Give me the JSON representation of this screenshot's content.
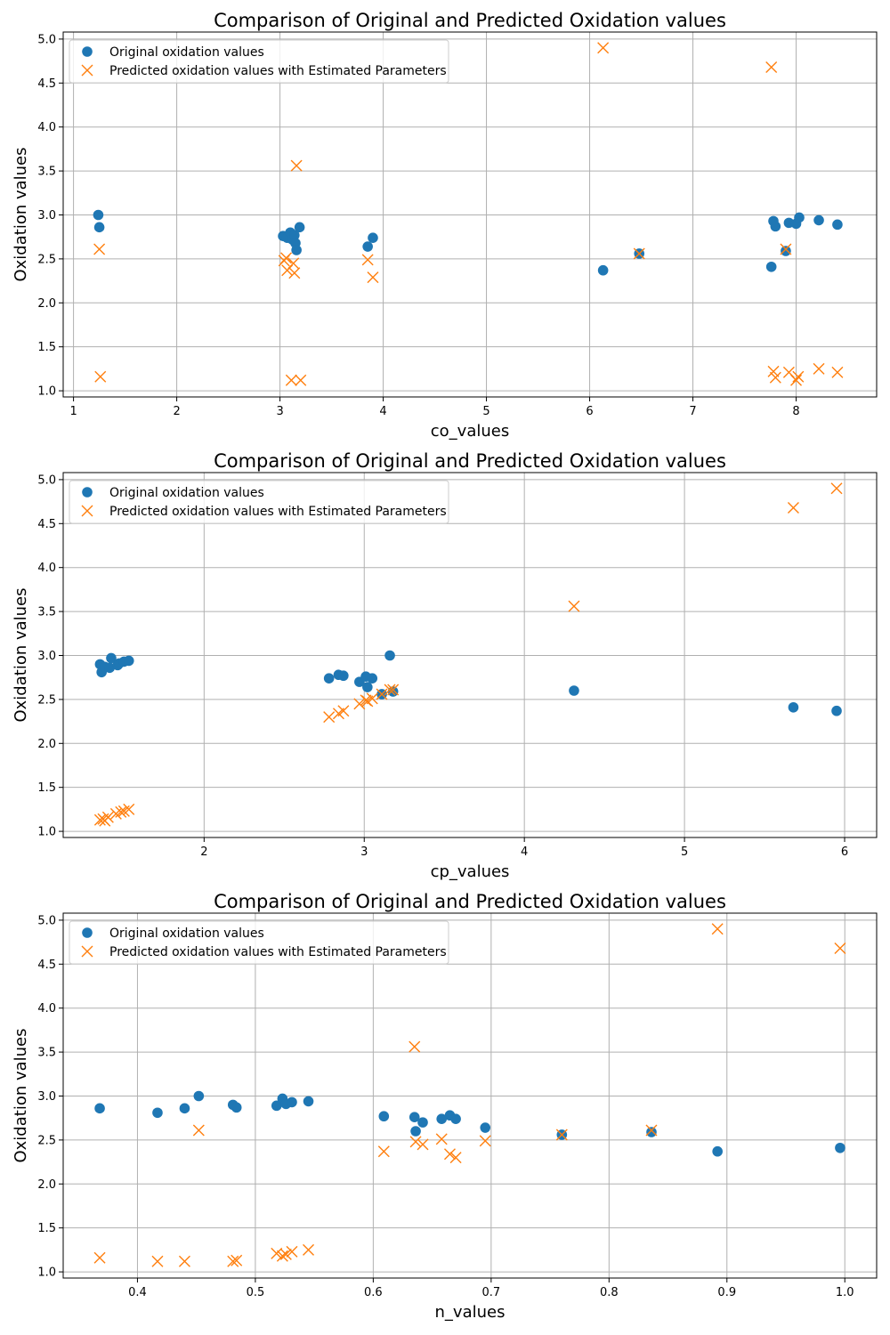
{
  "colors": {
    "original": "#1f77b4",
    "predicted": "#ff7f0e"
  },
  "chart_data": [
    {
      "type": "scatter",
      "title": "Comparison of Original and Predicted Oxidation values",
      "xlabel": "co_values",
      "ylabel": "Oxidation values",
      "xlim": [
        0.9,
        8.78
      ],
      "ylim": [
        0.93,
        5.08
      ],
      "xticks": [
        1,
        2,
        3,
        4,
        5,
        6,
        7,
        8
      ],
      "yticks": [
        1.0,
        1.5,
        2.0,
        2.5,
        3.0,
        3.5,
        4.0,
        4.5,
        5.0
      ],
      "tick_labels_x": [
        "1",
        "2",
        "3",
        "4",
        "5",
        "6",
        "7",
        "8"
      ],
      "tick_labels_y": [
        "1.0",
        "1.5",
        "2.0",
        "2.5",
        "3.0",
        "3.5",
        "4.0",
        "4.5",
        "5.0"
      ],
      "grid": true,
      "legend": "top-left",
      "series": [
        {
          "name": "Original oxidation values",
          "marker": "circle",
          "points": [
            [
              1.24,
              3.0
            ],
            [
              1.25,
              2.86
            ],
            [
              3.03,
              2.76
            ],
            [
              3.07,
              2.74
            ],
            [
              3.1,
              2.8
            ],
            [
              3.12,
              2.72
            ],
            [
              3.14,
              2.77
            ],
            [
              3.15,
              2.68
            ],
            [
              3.16,
              2.6
            ],
            [
              3.19,
              2.86
            ],
            [
              3.85,
              2.64
            ],
            [
              3.9,
              2.74
            ],
            [
              6.13,
              2.37
            ],
            [
              6.48,
              2.56
            ],
            [
              7.76,
              2.41
            ],
            [
              7.78,
              2.93
            ],
            [
              7.8,
              2.87
            ],
            [
              7.9,
              2.59
            ],
            [
              7.93,
              2.91
            ],
            [
              8.0,
              2.9
            ],
            [
              8.03,
              2.97
            ],
            [
              8.22,
              2.94
            ],
            [
              8.4,
              2.89
            ]
          ]
        },
        {
          "name": "Predicted oxidation values with Estimated Parameters",
          "marker": "x",
          "points": [
            [
              1.25,
              2.61
            ],
            [
              1.26,
              1.16
            ],
            [
              3.04,
              2.48
            ],
            [
              3.06,
              2.51
            ],
            [
              3.07,
              2.37
            ],
            [
              3.11,
              1.12
            ],
            [
              3.13,
              2.45
            ],
            [
              3.14,
              2.34
            ],
            [
              3.16,
              3.56
            ],
            [
              3.2,
              1.12
            ],
            [
              3.85,
              2.49
            ],
            [
              3.9,
              2.29
            ],
            [
              6.13,
              4.9
            ],
            [
              6.48,
              2.56
            ],
            [
              7.76,
              4.68
            ],
            [
              7.78,
              1.22
            ],
            [
              7.8,
              1.15
            ],
            [
              7.9,
              2.61
            ],
            [
              7.93,
              1.21
            ],
            [
              8.0,
              1.12
            ],
            [
              8.02,
              1.16
            ],
            [
              8.22,
              1.25
            ],
            [
              8.4,
              1.21
            ]
          ]
        }
      ]
    },
    {
      "type": "scatter",
      "title": "Comparison of Original and Predicted Oxidation values",
      "xlabel": "cp_values",
      "ylabel": "Oxidation values",
      "xlim": [
        1.12,
        6.2
      ],
      "ylim": [
        0.93,
        5.08
      ],
      "xticks": [
        2,
        3,
        4,
        5,
        6
      ],
      "yticks": [
        1.0,
        1.5,
        2.0,
        2.5,
        3.0,
        3.5,
        4.0,
        4.5,
        5.0
      ],
      "tick_labels_x": [
        "2",
        "3",
        "4",
        "5",
        "6"
      ],
      "tick_labels_y": [
        "1.0",
        "1.5",
        "2.0",
        "2.5",
        "3.0",
        "3.5",
        "4.0",
        "4.5",
        "5.0"
      ],
      "grid": true,
      "legend": "top-left",
      "series": [
        {
          "name": "Original oxidation values",
          "marker": "circle",
          "points": [
            [
              1.35,
              2.9
            ],
            [
              1.36,
              2.81
            ],
            [
              1.38,
              2.87
            ],
            [
              1.41,
              2.86
            ],
            [
              1.42,
              2.97
            ],
            [
              1.46,
              2.89
            ],
            [
              1.47,
              2.91
            ],
            [
              1.5,
              2.93
            ],
            [
              1.53,
              2.94
            ],
            [
              2.78,
              2.74
            ],
            [
              2.84,
              2.78
            ],
            [
              2.87,
              2.77
            ],
            [
              2.97,
              2.7
            ],
            [
              3.01,
              2.76
            ],
            [
              3.02,
              2.64
            ],
            [
              3.05,
              2.74
            ],
            [
              3.11,
              2.56
            ],
            [
              3.16,
              3.0
            ],
            [
              3.18,
              2.59
            ],
            [
              4.31,
              2.6
            ],
            [
              5.68,
              2.41
            ],
            [
              5.95,
              2.37
            ]
          ]
        },
        {
          "name": "Predicted oxidation values with Estimated Parameters",
          "marker": "x",
          "points": [
            [
              1.35,
              1.13
            ],
            [
              1.37,
              1.14
            ],
            [
              1.38,
              1.12
            ],
            [
              1.4,
              1.16
            ],
            [
              1.45,
              1.2
            ],
            [
              1.48,
              1.22
            ],
            [
              1.5,
              1.23
            ],
            [
              1.53,
              1.25
            ],
            [
              2.78,
              2.3
            ],
            [
              2.84,
              2.34
            ],
            [
              2.87,
              2.37
            ],
            [
              2.97,
              2.45
            ],
            [
              3.01,
              2.49
            ],
            [
              3.02,
              2.48
            ],
            [
              3.05,
              2.51
            ],
            [
              3.11,
              2.56
            ],
            [
              3.16,
              2.61
            ],
            [
              3.18,
              2.61
            ],
            [
              4.31,
              3.56
            ],
            [
              5.68,
              4.68
            ],
            [
              5.95,
              4.9
            ]
          ]
        }
      ]
    },
    {
      "type": "scatter",
      "title": "Comparison of Original and Predicted Oxidation values",
      "xlabel": "n_values",
      "ylabel": "Oxidation values",
      "xlim": [
        0.337,
        1.027
      ],
      "ylim": [
        0.93,
        5.08
      ],
      "xticks": [
        0.4,
        0.5,
        0.6,
        0.7,
        0.8,
        0.9,
        1.0
      ],
      "yticks": [
        1.0,
        1.5,
        2.0,
        2.5,
        3.0,
        3.5,
        4.0,
        4.5,
        5.0
      ],
      "tick_labels_x": [
        "0.4",
        "0.5",
        "0.6",
        "0.7",
        "0.8",
        "0.9",
        "1.0"
      ],
      "tick_labels_y": [
        "1.0",
        "1.5",
        "2.0",
        "2.5",
        "3.0",
        "3.5",
        "4.0",
        "4.5",
        "5.0"
      ],
      "grid": true,
      "legend": "top-left",
      "series": [
        {
          "name": "Original oxidation values",
          "marker": "circle",
          "points": [
            [
              0.368,
              2.86
            ],
            [
              0.417,
              2.81
            ],
            [
              0.44,
              2.86
            ],
            [
              0.452,
              3.0
            ],
            [
              0.481,
              2.9
            ],
            [
              0.484,
              2.87
            ],
            [
              0.518,
              2.89
            ],
            [
              0.523,
              2.97
            ],
            [
              0.526,
              2.91
            ],
            [
              0.531,
              2.93
            ],
            [
              0.545,
              2.94
            ],
            [
              0.609,
              2.77
            ],
            [
              0.635,
              2.76
            ],
            [
              0.636,
              2.6
            ],
            [
              0.642,
              2.7
            ],
            [
              0.658,
              2.74
            ],
            [
              0.665,
              2.78
            ],
            [
              0.67,
              2.74
            ],
            [
              0.695,
              2.64
            ],
            [
              0.76,
              2.56
            ],
            [
              0.836,
              2.59
            ],
            [
              0.892,
              2.37
            ],
            [
              0.996,
              2.41
            ]
          ]
        },
        {
          "name": "Predicted oxidation values with Estimated Parameters",
          "marker": "x",
          "points": [
            [
              0.368,
              1.16
            ],
            [
              0.417,
              1.12
            ],
            [
              0.44,
              1.12
            ],
            [
              0.452,
              2.61
            ],
            [
              0.481,
              1.12
            ],
            [
              0.484,
              1.13
            ],
            [
              0.518,
              1.21
            ],
            [
              0.523,
              1.18
            ],
            [
              0.526,
              1.2
            ],
            [
              0.531,
              1.23
            ],
            [
              0.545,
              1.25
            ],
            [
              0.609,
              2.37
            ],
            [
              0.635,
              3.56
            ],
            [
              0.636,
              2.48
            ],
            [
              0.642,
              2.45
            ],
            [
              0.658,
              2.51
            ],
            [
              0.665,
              2.34
            ],
            [
              0.67,
              2.3
            ],
            [
              0.695,
              2.49
            ],
            [
              0.76,
              2.56
            ],
            [
              0.836,
              2.61
            ],
            [
              0.892,
              4.9
            ],
            [
              0.996,
              4.68
            ]
          ]
        }
      ]
    }
  ]
}
